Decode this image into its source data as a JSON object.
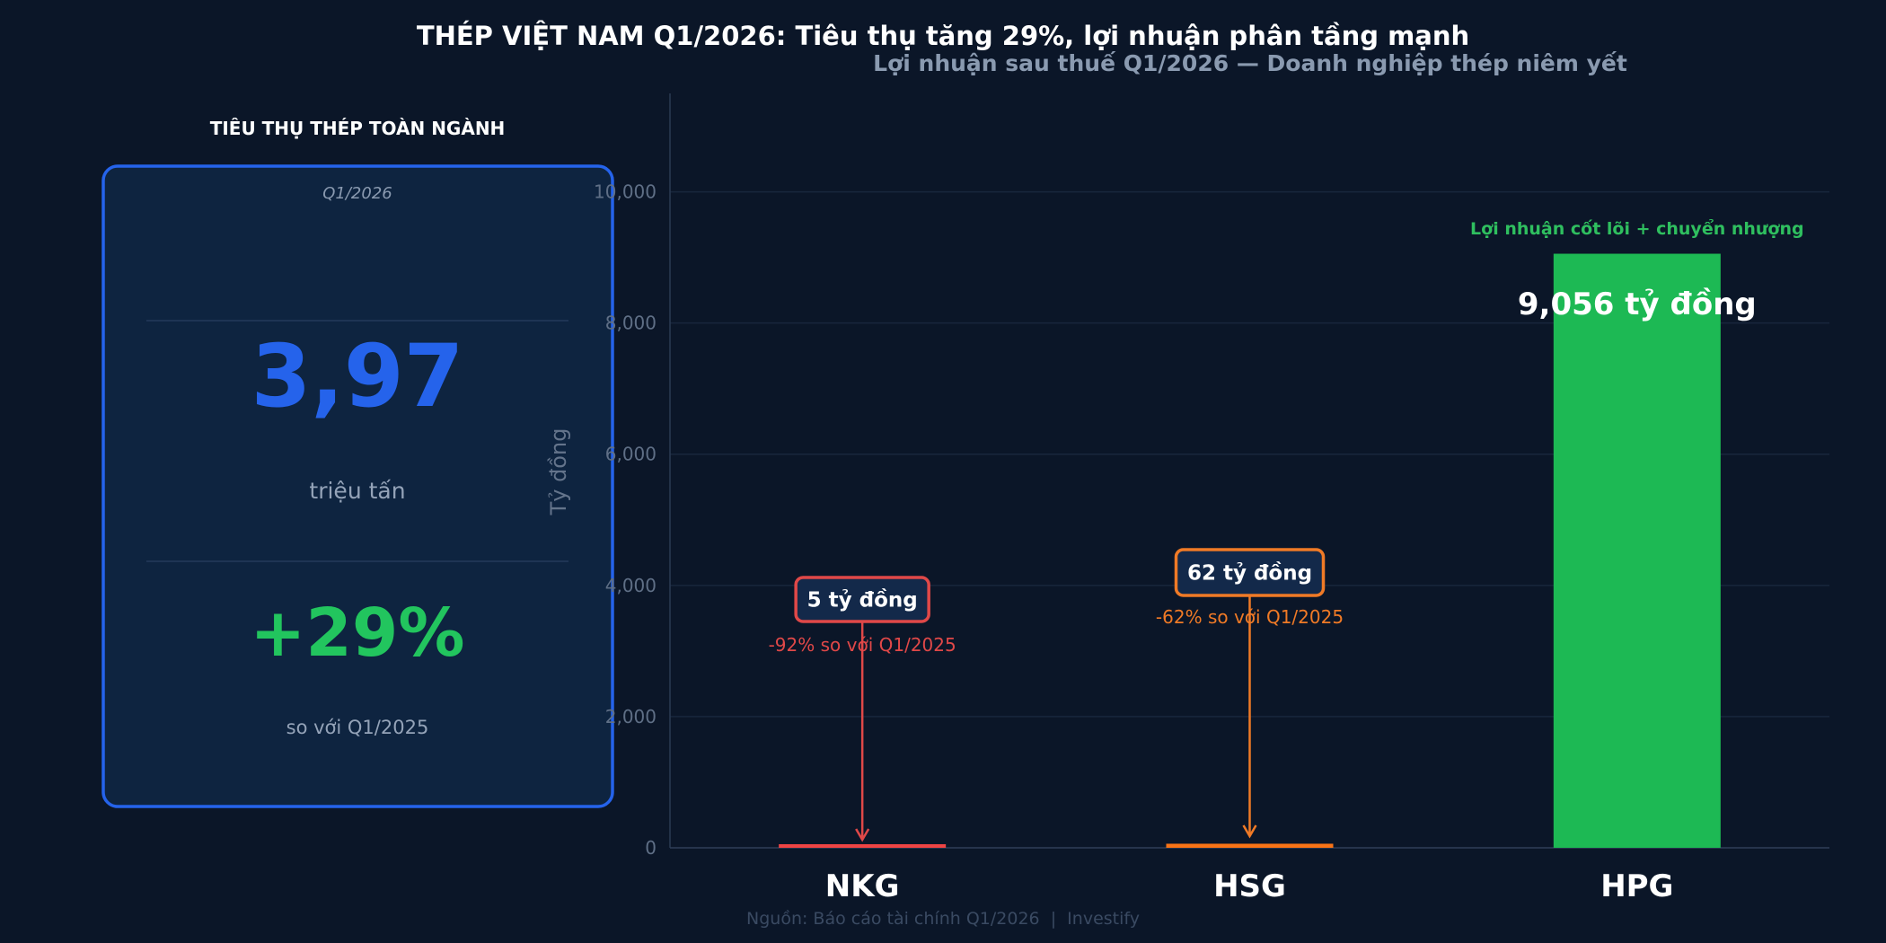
{
  "title": "THÉP VIỆT NAM Q1/2026: Tiêu thụ tăng 29%, lợi nhuận phân tầng mạnh",
  "source": "Nguồn: Báo cáo tài chính Q1/2026  |  Investify",
  "panel": {
    "heading": "TIÊU THỤ THÉP TOÀN NGÀNH",
    "period": "Q1/2026",
    "volume": "3,97",
    "volume_unit": "triệu tấn",
    "growth": "+29%",
    "growth_note": "so với Q1/2025",
    "accent_color": "#2563eb",
    "growth_color": "#22c55e"
  },
  "chart_data": {
    "type": "bar",
    "title": "Lợi nhuận sau thuế Q1/2026 — Doanh nghiệp thép niêm yết",
    "ylabel": "Tỷ đồng",
    "xlabel": "",
    "categories": [
      "NKG",
      "HSG",
      "HPG"
    ],
    "values": [
      5,
      62,
      9056
    ],
    "colors": [
      "#ef4444",
      "#f97316",
      "#1db954"
    ],
    "ylim": [
      0,
      11500
    ],
    "yticks": [
      0,
      2000,
      4000,
      6000,
      8000,
      10000
    ],
    "ytick_labels": [
      "0",
      "2,000",
      "4,000",
      "6,000",
      "8,000",
      "10,000"
    ],
    "grid": true,
    "annotations": [
      {
        "category": "NKG",
        "label": "5 tỷ đồng",
        "note": "-92% so với Q1/2025",
        "color": "#e04848"
      },
      {
        "category": "HSG",
        "label": "62 tỷ đồng",
        "note": "-62% so với Q1/2025",
        "color": "#f07a26"
      },
      {
        "category": "HPG",
        "label": "9,056 tỷ đồng",
        "note": "Lợi nhuận cốt lõi + chuyển nhượng",
        "color": "#2fbf5f"
      }
    ]
  }
}
